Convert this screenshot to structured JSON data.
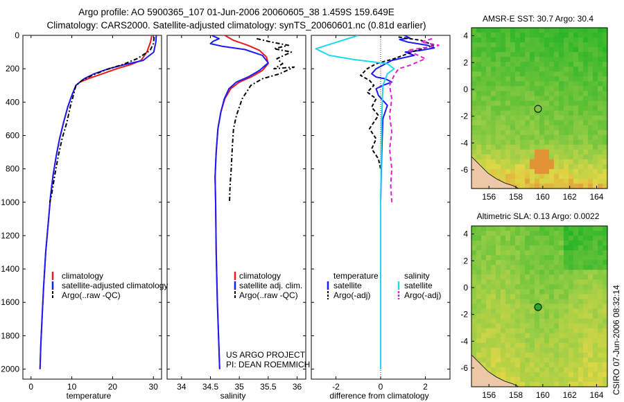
{
  "title": {
    "line1": "Argo profile: AO 5900365_107 01-Jun-2006 20060605_38 1.459S 159.649E",
    "line2": "Climatology: CARS2000. Satellite-adjusted climatology: synTS_20060601.nc (0.81d earlier)"
  },
  "colors": {
    "clim": "#e8191a",
    "sat": "#1a1aff",
    "argo": "#000000",
    "satS": "#22d6f0",
    "argoS": "#e020d0"
  },
  "chart_data": [
    {
      "type": "line",
      "name": "temperature",
      "xlabel": "temperature",
      "ylabel": "",
      "xlim": [
        -2,
        32
      ],
      "ylim": [
        2060,
        0
      ],
      "xticks": [
        0,
        10,
        20,
        30
      ],
      "yticks": [
        0,
        200,
        400,
        600,
        800,
        1000,
        1200,
        1400,
        1600,
        1800,
        2000
      ],
      "legend": [
        "climatology",
        "satellite-adjusted climatology",
        "Argo(..raw -QC)"
      ],
      "series": [
        {
          "name": "climatology",
          "color": "clim",
          "dash": "",
          "points": [
            [
              29.6,
              0
            ],
            [
              29.3,
              40
            ],
            [
              28.4,
              100
            ],
            [
              27,
              150
            ],
            [
              24.5,
              175
            ],
            [
              21,
              200
            ],
            [
              17.5,
              230
            ],
            [
              14,
              260
            ],
            [
              12,
              280
            ],
            [
              11,
              300
            ],
            [
              10,
              360
            ],
            [
              9,
              430
            ],
            [
              8,
              520
            ],
            [
              7,
              620
            ],
            [
              6.2,
              720
            ],
            [
              5.4,
              840
            ],
            [
              4.8,
              960
            ],
            [
              4.3,
              1100
            ],
            [
              3.6,
              1300
            ],
            [
              3.1,
              1500
            ],
            [
              2.7,
              1700
            ],
            [
              2.4,
              1850
            ],
            [
              2.2,
              2000
            ]
          ]
        },
        {
          "name": "satellite-adjusted climatology",
          "color": "sat",
          "dash": "",
          "points": [
            [
              30.7,
              0
            ],
            [
              30.6,
              40
            ],
            [
              30.1,
              100
            ],
            [
              27.5,
              150
            ],
            [
              23,
              175
            ],
            [
              19,
              200
            ],
            [
              15.5,
              230
            ],
            [
              13,
              260
            ],
            [
              12,
              280
            ],
            [
              11,
              300
            ],
            [
              10,
              360
            ],
            [
              9,
              430
            ],
            [
              8,
              520
            ],
            [
              7,
              620
            ],
            [
              6.2,
              720
            ],
            [
              5.4,
              840
            ],
            [
              4.8,
              960
            ],
            [
              4.3,
              1100
            ],
            [
              3.6,
              1300
            ],
            [
              3.1,
              1500
            ],
            [
              2.7,
              1700
            ],
            [
              2.4,
              1850
            ],
            [
              2.2,
              2000
            ]
          ]
        },
        {
          "name": "Argo(..raw -QC)",
          "color": "argo",
          "dash": "6,3,2,3",
          "points": [
            [
              30.2,
              10
            ],
            [
              30,
              50
            ],
            [
              29.2,
              90
            ],
            [
              26,
              140
            ],
            [
              22.5,
              175
            ],
            [
              18.5,
              205
            ],
            [
              15,
              240
            ],
            [
              12.5,
              270
            ],
            [
              11,
              300
            ],
            [
              10.5,
              350
            ],
            [
              9.7,
              420
            ],
            [
              8.8,
              520
            ],
            [
              7.6,
              620
            ],
            [
              6.7,
              720
            ],
            [
              5.8,
              840
            ],
            [
              5,
              960
            ],
            [
              4.6,
              1000
            ]
          ]
        }
      ]
    },
    {
      "type": "line",
      "name": "salinity",
      "xlabel": "salinity",
      "ylabel": "",
      "xlim": [
        33.75,
        36.15
      ],
      "ylim": [
        2060,
        0
      ],
      "xticks": [
        34,
        34.5,
        35,
        35.5,
        36
      ],
      "yticks": [
        0,
        200,
        400,
        600,
        800,
        1000,
        1200,
        1400,
        1600,
        1800,
        2000
      ],
      "legend": [
        "climatology",
        "satellite adj. clim.",
        "Argo(..raw -QC)"
      ],
      "series": [
        {
          "name": "climatology",
          "color": "clim",
          "dash": "",
          "points": [
            [
              34.75,
              0
            ],
            [
              34.9,
              30
            ],
            [
              35.15,
              60
            ],
            [
              35.35,
              90
            ],
            [
              35.47,
              130
            ],
            [
              35.5,
              170
            ],
            [
              35.4,
              210
            ],
            [
              35.2,
              250
            ],
            [
              35,
              280
            ],
            [
              34.85,
              320
            ],
            [
              34.75,
              380
            ],
            [
              34.68,
              460
            ],
            [
              34.63,
              560
            ],
            [
              34.6,
              700
            ],
            [
              34.58,
              850
            ],
            [
              34.59,
              1000
            ],
            [
              34.6,
              1300
            ],
            [
              34.62,
              1600
            ],
            [
              34.64,
              1800
            ],
            [
              34.66,
              2000
            ]
          ]
        },
        {
          "name": "satellite adj. clim.",
          "color": "sat",
          "dash": "",
          "points": [
            [
              34.52,
              0
            ],
            [
              34.65,
              20
            ],
            [
              34.55,
              35
            ],
            [
              34.5,
              50
            ],
            [
              34.7,
              65
            ],
            [
              35.1,
              85
            ],
            [
              35.4,
              120
            ],
            [
              35.5,
              165
            ],
            [
              35.35,
              210
            ],
            [
              35.15,
              250
            ],
            [
              34.95,
              280
            ],
            [
              34.82,
              320
            ],
            [
              34.74,
              380
            ],
            [
              34.68,
              460
            ],
            [
              34.63,
              560
            ],
            [
              34.6,
              700
            ],
            [
              34.58,
              850
            ],
            [
              34.59,
              1000
            ],
            [
              34.6,
              1300
            ],
            [
              34.62,
              1600
            ],
            [
              34.64,
              1800
            ],
            [
              34.66,
              2000
            ]
          ]
        },
        {
          "name": "Argo(..raw -QC)",
          "color": "argo",
          "dash": "6,3,2,3",
          "points": [
            [
              35.3,
              20
            ],
            [
              35.55,
              40
            ],
            [
              35.85,
              60
            ],
            [
              35.6,
              80
            ],
            [
              35.9,
              100
            ],
            [
              35.65,
              140
            ],
            [
              35.75,
              170
            ],
            [
              35.6,
              200
            ],
            [
              35.95,
              190
            ],
            [
              35.7,
              230
            ],
            [
              35.4,
              260
            ],
            [
              35.2,
              300
            ],
            [
              35.05,
              380
            ],
            [
              34.95,
              480
            ],
            [
              34.9,
              560
            ],
            [
              34.88,
              660
            ],
            [
              34.86,
              800
            ],
            [
              34.84,
              900
            ],
            [
              34.83,
              1000
            ]
          ]
        }
      ]
    },
    {
      "type": "line",
      "name": "difference",
      "xlabel": "difference from climatology",
      "ylabel": "",
      "xlim": [
        -3.1,
        3.1
      ],
      "ylim": [
        2060,
        0
      ],
      "xticks": [
        -2,
        0,
        2
      ],
      "yticks": [
        0,
        200,
        400,
        600,
        800,
        1000,
        1200,
        1400,
        1600,
        1800,
        2000
      ],
      "legend_left_title": "temperature",
      "legend_right_title": "salinity",
      "legend": [
        "satellite",
        "Argo(-adj)",
        "satellite",
        "Argo(-adj)"
      ],
      "series": [
        {
          "name": "temperature satellite",
          "color": "sat",
          "dash": "",
          "points": [
            [
              1.05,
              0
            ],
            [
              1.3,
              15
            ],
            [
              0.85,
              25
            ],
            [
              1.2,
              40
            ],
            [
              2.1,
              60
            ],
            [
              2.4,
              75
            ],
            [
              1.8,
              90
            ],
            [
              1.1,
              100
            ],
            [
              1.5,
              120
            ],
            [
              0.5,
              150
            ],
            [
              -0.2,
              200
            ],
            [
              -0.4,
              230
            ],
            [
              -0.2,
              250
            ],
            [
              0.2,
              260
            ],
            [
              0.5,
              280
            ],
            [
              0.1,
              300
            ],
            [
              -0.2,
              320
            ],
            [
              -0.1,
              360
            ],
            [
              0.3,
              420
            ],
            [
              0.1,
              500
            ],
            [
              0.05,
              700
            ],
            [
              0,
              1000
            ],
            [
              0,
              2000
            ]
          ]
        },
        {
          "name": "temperature Argo(-adj)",
          "color": "argo",
          "dash": "5,3",
          "points": [
            [
              0.8,
              10
            ],
            [
              1.8,
              30
            ],
            [
              2.4,
              60
            ],
            [
              1.6,
              90
            ],
            [
              1.2,
              110
            ],
            [
              0.6,
              140
            ],
            [
              -0.2,
              170
            ],
            [
              -0.6,
              200
            ],
            [
              -0.9,
              240
            ],
            [
              -0.5,
              270
            ],
            [
              -0.3,
              300
            ],
            [
              -0.6,
              340
            ],
            [
              -0.2,
              380
            ],
            [
              -0.4,
              430
            ],
            [
              -0.1,
              480
            ],
            [
              -0.3,
              520
            ],
            [
              -0.5,
              560
            ],
            [
              -0.2,
              620
            ],
            [
              -0.4,
              680
            ],
            [
              -0.1,
              740
            ],
            [
              0,
              800
            ]
          ]
        },
        {
          "name": "salinity satellite",
          "color": "satS",
          "dash": "",
          "points": [
            [
              -1,
              0
            ],
            [
              -2.9,
              80
            ],
            [
              -2.3,
              120
            ],
            [
              -1.2,
              145
            ],
            [
              0.3,
              170
            ],
            [
              0.6,
              200
            ],
            [
              0.3,
              230
            ],
            [
              0.1,
              300
            ],
            [
              0.05,
              500
            ],
            [
              0,
              1000
            ],
            [
              0,
              2000
            ]
          ]
        },
        {
          "name": "salinity Argo(-adj)",
          "color": "argoS",
          "dash": "6,4",
          "points": [
            [
              2.3,
              20
            ],
            [
              1.8,
              40
            ],
            [
              2.6,
              60
            ],
            [
              1.2,
              90
            ],
            [
              2,
              140
            ],
            [
              1.3,
              180
            ],
            [
              0.8,
              200
            ],
            [
              0.6,
              240
            ],
            [
              0.4,
              300
            ],
            [
              0.5,
              380
            ],
            [
              0.4,
              480
            ],
            [
              0.5,
              580
            ],
            [
              0.4,
              680
            ],
            [
              0.5,
              800
            ],
            [
              0.45,
              900
            ],
            [
              0.5,
              1000
            ]
          ]
        }
      ]
    },
    {
      "type": "heatmap",
      "name": "sst-map",
      "title": "AMSR-E SST: 30.7 Argo: 30.4",
      "xticks": [
        156,
        158,
        160,
        162,
        164
      ],
      "yticks": [
        4,
        2,
        0,
        -2,
        -4,
        -6
      ],
      "xlim": [
        154.7,
        164.8
      ],
      "ylim": [
        -7.4,
        4.6
      ],
      "marker": {
        "lon": 159.649,
        "lat": -1.459
      }
    },
    {
      "type": "heatmap",
      "name": "sla-map",
      "title": "Altimetric SLA: 0.13 Argo: 0.0022",
      "xticks": [
        156,
        158,
        160,
        162,
        164
      ],
      "yticks": [
        4,
        2,
        0,
        -2,
        -4,
        -6
      ],
      "xlim": [
        154.7,
        164.8
      ],
      "ylim": [
        -7.4,
        4.6
      ],
      "marker": {
        "lon": 159.649,
        "lat": -1.459
      }
    }
  ],
  "credits": {
    "project": "US ARGO PROJECT",
    "pi": "PI: DEAN ROEMMICH",
    "stamp": "CSIRO 07-Jun-2006 08:32:14"
  }
}
